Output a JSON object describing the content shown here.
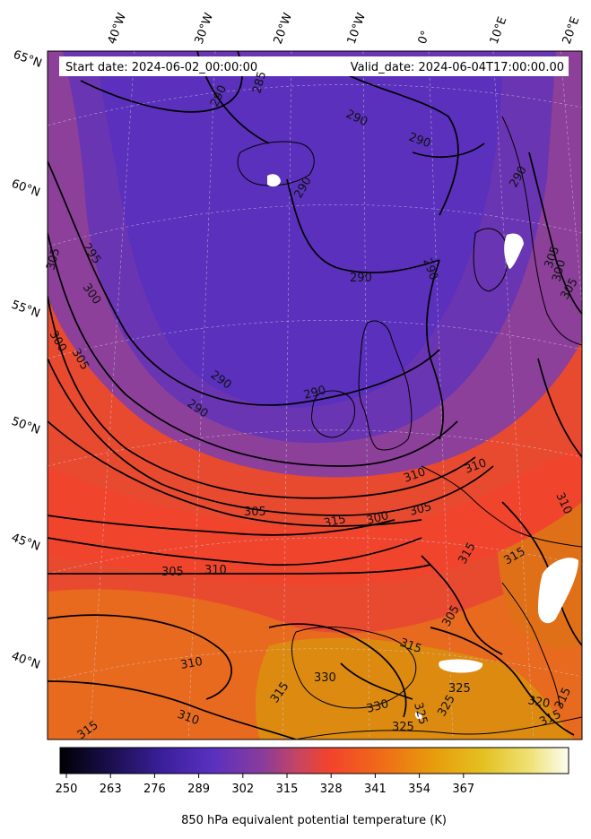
{
  "header": {
    "start_date": "Start date: 2024-06-02_00:00:00",
    "valid_date": "Valid_date: 2024-06-04T17:00:00.00"
  },
  "longitude_labels": [
    "40°W",
    "30°W",
    "20°W",
    "10°W",
    "0°",
    "10°E",
    "20°E"
  ],
  "latitude_labels": [
    "65°N",
    "60°N",
    "55°N",
    "50°N",
    "45°N",
    "40°N"
  ],
  "contour_labels": [
    "290",
    "290",
    "290",
    "290",
    "285",
    "290",
    "290",
    "290",
    "290",
    "290",
    "290",
    "295",
    "300",
    "305",
    "300",
    "305",
    "305",
    "305",
    "305",
    "310",
    "315",
    "300",
    "305",
    "310",
    "310",
    "315",
    "310",
    "315",
    "310",
    "315",
    "325",
    "330",
    "330",
    "325",
    "325",
    "325",
    "320",
    "315",
    "315",
    "315",
    "310",
    "300",
    "305",
    "305",
    "315"
  ],
  "colorbar": {
    "ticks": [
      "250",
      "263",
      "276",
      "289",
      "302",
      "315",
      "328",
      "341",
      "354",
      "367"
    ],
    "label": "850 hPa equivalent potential temperature (K)",
    "colors": [
      "#000004",
      "#3b0f70",
      "#5b2fbc",
      "#7b3fa8",
      "#b04a7a",
      "#f0402f",
      "#f06a1a",
      "#e69a0a",
      "#e6c21a",
      "#f5f0a0",
      "#fcfdf0"
    ]
  }
}
